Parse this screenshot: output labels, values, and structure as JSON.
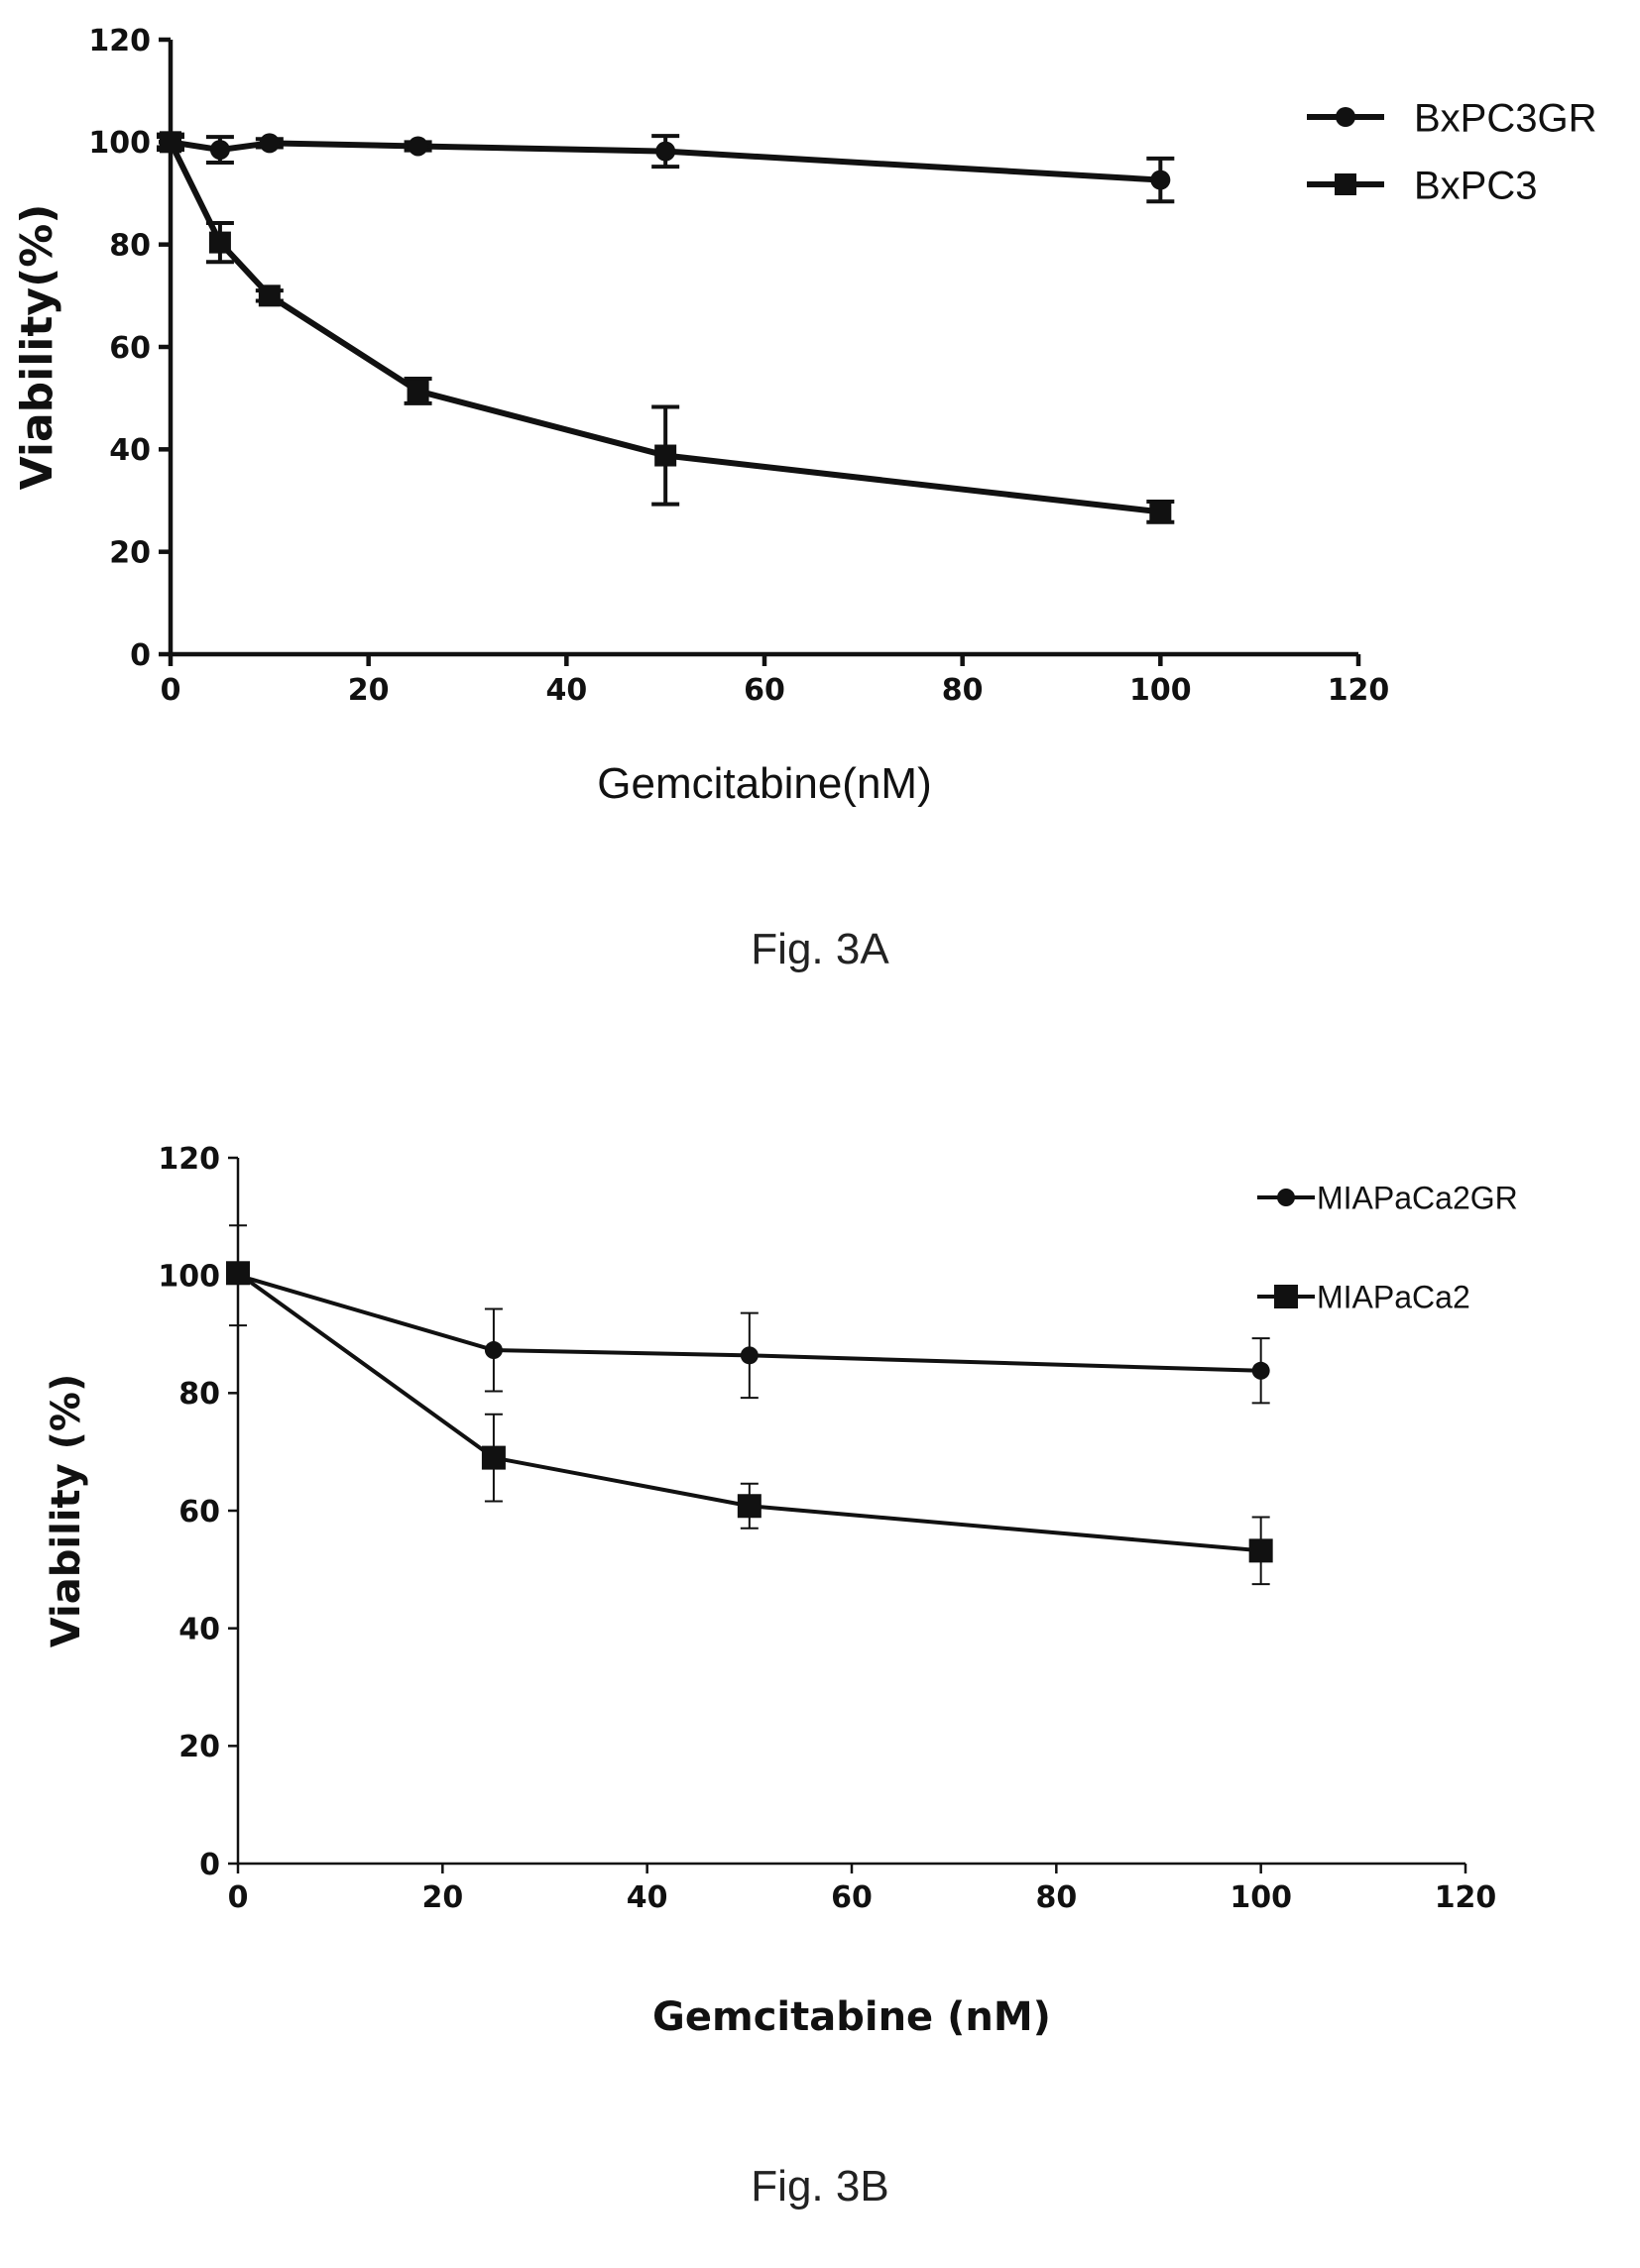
{
  "figures": [
    {
      "caption": "Fig. 3A"
    },
    {
      "caption": "Fig. 3B"
    }
  ],
  "chart_data": [
    {
      "type": "line",
      "xlabel": "Gemcitabine(nM)",
      "ylabel": "Viability(%)",
      "xlim": [
        0,
        120
      ],
      "ylim": [
        0,
        120
      ],
      "x_ticks": [
        0,
        20,
        40,
        60,
        80,
        100,
        120
      ],
      "y_ticks": [
        0,
        20,
        40,
        60,
        80,
        100,
        120
      ],
      "grid": false,
      "legend_position": "top-right",
      "series": [
        {
          "name": "BxPC3GR",
          "marker": "circle",
          "x": [
            0,
            5,
            10,
            25,
            50,
            100
          ],
          "y": [
            100,
            98.5,
            99.8,
            99.2,
            98.2,
            92.6
          ],
          "error": [
            1.5,
            2.5,
            0.8,
            0.8,
            3,
            4.2
          ]
        },
        {
          "name": "BxPC3",
          "marker": "square",
          "x": [
            0,
            5,
            10,
            25,
            50,
            100
          ],
          "y": [
            100,
            80.4,
            70,
            51.4,
            38.8,
            27.8
          ],
          "error": [
            1,
            3.8,
            1,
            2.4,
            9.5,
            2
          ]
        }
      ]
    },
    {
      "type": "line",
      "xlabel": "Gemcitabine (nM)",
      "ylabel": "Viability (%)",
      "xlim": [
        0,
        120
      ],
      "ylim": [
        0,
        120
      ],
      "x_ticks": [
        0,
        20,
        40,
        60,
        80,
        100,
        120
      ],
      "y_ticks": [
        0,
        20,
        40,
        60,
        80,
        100,
        120
      ],
      "grid": false,
      "legend_position": "top-right",
      "series": [
        {
          "name": "MIAPaCa2GR",
          "marker": "circle",
          "x": [
            0,
            25,
            50,
            100
          ],
          "y": [
            100,
            87.3,
            86.4,
            83.8
          ],
          "error": [
            8.5,
            7,
            7.2,
            5.5
          ]
        },
        {
          "name": "MIAPaCa2",
          "marker": "square",
          "x": [
            0,
            25,
            50,
            100
          ],
          "y": [
            100.4,
            69,
            60.8,
            53.2
          ],
          "error": [
            1,
            7.4,
            3.8,
            5.7
          ]
        }
      ]
    }
  ]
}
